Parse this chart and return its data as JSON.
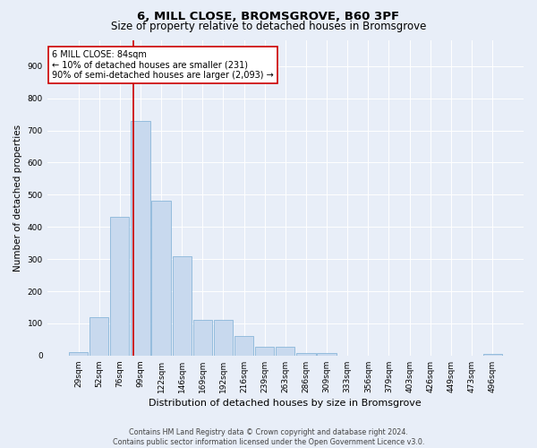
{
  "title": "6, MILL CLOSE, BROMSGROVE, B60 3PF",
  "subtitle": "Size of property relative to detached houses in Bromsgrove",
  "xlabel": "Distribution of detached houses by size in Bromsgrove",
  "ylabel": "Number of detached properties",
  "bar_color": "#c8d9ee",
  "bar_edge_color": "#7aadd4",
  "bar_categories": [
    "29sqm",
    "52sqm",
    "76sqm",
    "99sqm",
    "122sqm",
    "146sqm",
    "169sqm",
    "192sqm",
    "216sqm",
    "239sqm",
    "263sqm",
    "286sqm",
    "309sqm",
    "333sqm",
    "356sqm",
    "379sqm",
    "403sqm",
    "426sqm",
    "449sqm",
    "473sqm",
    "496sqm"
  ],
  "bar_values": [
    10,
    120,
    430,
    730,
    480,
    310,
    110,
    110,
    60,
    28,
    28,
    8,
    8,
    0,
    0,
    0,
    0,
    0,
    0,
    0,
    6
  ],
  "ylim": [
    0,
    980
  ],
  "yticks": [
    0,
    100,
    200,
    300,
    400,
    500,
    600,
    700,
    800,
    900
  ],
  "vline_x_index": 2.65,
  "vline_color": "#cc0000",
  "annotation_text": "6 MILL CLOSE: 84sqm\n← 10% of detached houses are smaller (231)\n90% of semi-detached houses are larger (2,093) →",
  "annotation_box_color": "#ffffff",
  "annotation_box_edge": "#cc0000",
  "footer_line1": "Contains HM Land Registry data © Crown copyright and database right 2024.",
  "footer_line2": "Contains public sector information licensed under the Open Government Licence v3.0.",
  "background_color": "#e8eef8",
  "plot_background": "#e8eef8",
  "grid_color": "#ffffff",
  "title_fontsize": 9.5,
  "subtitle_fontsize": 8.5,
  "tick_fontsize": 6.5,
  "ylabel_fontsize": 7.5,
  "xlabel_fontsize": 8,
  "annotation_fontsize": 7,
  "footer_fontsize": 5.8
}
